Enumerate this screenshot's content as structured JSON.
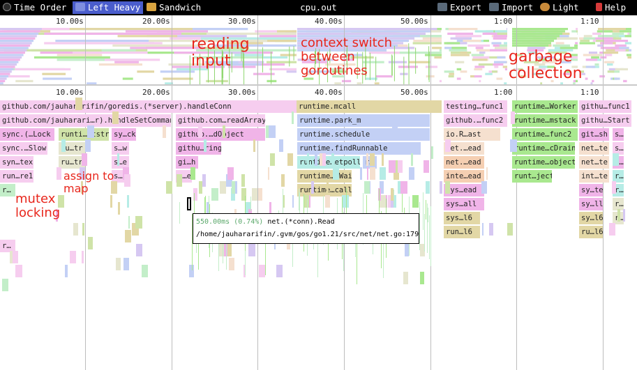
{
  "toolbar": {
    "time_order": "Time Order",
    "left_heavy": "Left Heavy",
    "sandwich": "Sandwich",
    "title": "cpu.out",
    "export": "Export",
    "import": "Import",
    "light": "Light",
    "help": "Help"
  },
  "axis": {
    "ticks": [
      "10.00s",
      "20.00s",
      "30.00s",
      "40.00s",
      "50.00s",
      "1:00",
      "1:10"
    ]
  },
  "frames": [
    {
      "label": "github.com/jauhararifin/goredis.(*server).handleConn",
      "color": "#f6cdef"
    },
    {
      "label": "runtime.mcall",
      "color": "#e2d7a5"
    },
    {
      "label": "testing…func1",
      "color": "#f6cdef"
    },
    {
      "label": "runtime…Worker",
      "color": "#a9e88f"
    },
    {
      "label": "githu…func1",
      "color": "#f6cdef"
    },
    {
      "label": "github.com/jauharari…r).handleSetCommand",
      "color": "#f6cdef"
    },
    {
      "label": "github.com…readArray",
      "color": "#f6cdef"
    },
    {
      "label": "runtime.park_m",
      "color": "#c3d0f5"
    },
    {
      "label": "github.…func2",
      "color": "#f6cdef"
    },
    {
      "label": "runtime…mstack",
      "color": "#a9e88f"
    },
    {
      "label": "githu…Start",
      "color": "#f6cdef"
    },
    {
      "label": "sync.(…Lock",
      "color": "#f0b4e8"
    },
    {
      "label": "runti…ststr",
      "color": "#cfe3a8"
    },
    {
      "label": "sy…ck",
      "color": "#f0b4e8"
    },
    {
      "label": "github.…dObject",
      "color": "#f0b4e8"
    },
    {
      "label": "runtime.schedule",
      "color": "#c3d0f5"
    },
    {
      "label": "io.R…ast",
      "color": "#f5e0cf"
    },
    {
      "label": "runtime…func2",
      "color": "#a9e88f"
    },
    {
      "label": "git…sh",
      "color": "#f0b4e8"
    },
    {
      "label": "s…",
      "color": "#f0b4e8"
    },
    {
      "label": "sync.…Slow",
      "color": "#f6cdef"
    },
    {
      "label": "ru…tr",
      "color": "#e6e6cf"
    },
    {
      "label": "s…w",
      "color": "#f6cdef"
    },
    {
      "label": "githu…ring",
      "color": "#f0b4e8"
    },
    {
      "label": "runtime.findRunnable",
      "color": "#c3d0f5"
    },
    {
      "label": "net.…ead",
      "color": "#f5e0cf"
    },
    {
      "label": "runtime…cDrain",
      "color": "#a9e88f"
    },
    {
      "label": "net…te",
      "color": "#f5e0cf"
    },
    {
      "label": "s…",
      "color": "#f6cdef"
    },
    {
      "label": "syn…tex",
      "color": "#f6cdef"
    },
    {
      "label": "ru…tr",
      "color": "#e6e6cf"
    },
    {
      "label": "s…e",
      "color": "#f6cdef"
    },
    {
      "label": "gi…h",
      "color": "#f0b4e8"
    },
    {
      "label": "runtime…etpoll",
      "color": "#b6ece6"
    },
    {
      "label": "r…",
      "color": "#c3d0f5"
    },
    {
      "label": "net.…ead",
      "color": "#f5cfb2"
    },
    {
      "label": "runtime…object",
      "color": "#a9e88f"
    },
    {
      "label": "net…te",
      "color": "#f5e0cf"
    },
    {
      "label": "s…",
      "color": "#f0b4e8"
    },
    {
      "label": "run…re1",
      "color": "#f6cdef"
    },
    {
      "label": "s…1",
      "color": "#f6cdef"
    },
    {
      "label": "g…e",
      "color": "#f6cdef"
    },
    {
      "label": "runtime…lWait",
      "color": "#e2d7a5"
    },
    {
      "label": "inte…ead",
      "color": "#f5cfb2"
    },
    {
      "label": "runt…ject",
      "color": "#a9e88f"
    },
    {
      "label": "int…te",
      "color": "#f5e0cf"
    },
    {
      "label": "r…",
      "color": "#b6ece6"
    },
    {
      "label": "r…",
      "color": "#c3eec9"
    },
    {
      "label": "runtime…call6",
      "color": "#e2d7a5"
    },
    {
      "label": "sys…ead",
      "color": "#f0b4e8"
    },
    {
      "label": "sy…te",
      "color": "#f0b4e8"
    },
    {
      "label": "r…",
      "color": "#b6ece6"
    },
    {
      "label": "sys…all",
      "color": "#f0b4e8"
    },
    {
      "label": "sy…ll",
      "color": "#f0b4e8"
    },
    {
      "label": "r…",
      "color": "#e6e6cf"
    },
    {
      "label": "sys…l6",
      "color": "#e2d7a5"
    },
    {
      "label": "sy…l6",
      "color": "#e2d7a5"
    },
    {
      "label": "r…",
      "color": "#e6e6cf"
    },
    {
      "label": "run…l6",
      "color": "#e2d7a5"
    },
    {
      "label": "ru…l6",
      "color": "#e2d7a5"
    },
    {
      "label": "r…",
      "color": "#f6cdef"
    }
  ],
  "annotations": {
    "reading_input": "reading\ninput",
    "context_switch": "context switch\nbetween\ngoroutines",
    "garbage_collection": "garbage\ncollection",
    "assign_to_map": "assign to\nmap",
    "mutex_locking": "mutex\nlocking"
  },
  "tooltip": {
    "time": "550.00ms (0.74%)",
    "func": "net.(*conn).Read",
    "path": "/home/jauhararifin/.gvm/gos/go1.21/src/net/net.go:179"
  }
}
